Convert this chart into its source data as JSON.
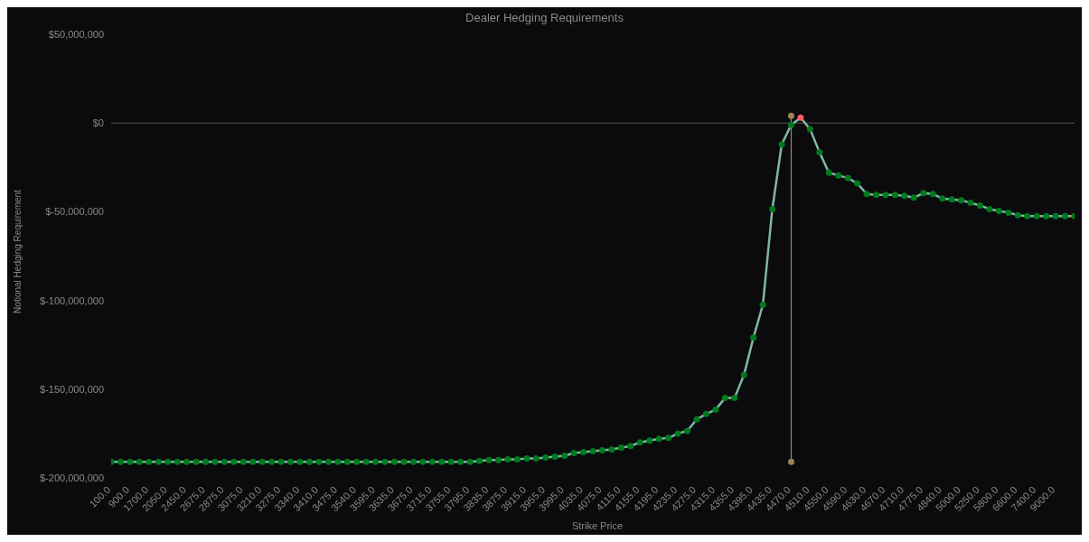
{
  "chart_data": {
    "type": "line",
    "title": "Dealer Hedging Requirements",
    "xlabel": "Strike Price",
    "ylabel": "Notional Hedging Requirement",
    "categories": [
      "100.0",
      null,
      "900.0",
      null,
      "1700.0",
      null,
      "2050.0",
      null,
      "2450.0",
      null,
      "2675.0",
      null,
      "2875.0",
      null,
      "3075.0",
      null,
      "3210.0",
      null,
      "3275.0",
      null,
      "3340.0",
      null,
      "3410.0",
      null,
      "3475.0",
      null,
      "3540.0",
      null,
      "3595.0",
      null,
      "3635.0",
      null,
      "3675.0",
      null,
      "3715.0",
      null,
      "3755.0",
      null,
      "3795.0",
      null,
      "3835.0",
      null,
      "3875.0",
      null,
      "3915.0",
      null,
      "3955.0",
      null,
      "3995.0",
      null,
      "4035.0",
      null,
      "4075.0",
      null,
      "4115.0",
      null,
      "4155.0",
      null,
      "4195.0",
      null,
      "4235.0",
      null,
      "4275.0",
      null,
      "4315.0",
      null,
      "4355.0",
      null,
      "4395.0",
      null,
      "4435.0",
      null,
      "4470.0",
      null,
      "4510.0",
      null,
      "4550.0",
      null,
      "4590.0",
      null,
      "4630.0",
      null,
      "4670.0",
      null,
      "4710.0",
      null,
      "4775.0",
      null,
      "4840.0",
      null,
      "5000.0",
      null,
      "5250.0",
      null,
      "5800.0",
      null,
      "6600.0",
      null,
      "7400.0",
      null,
      "9000.0",
      null,
      null
    ],
    "series": [
      {
        "color": "#7fb8a4",
        "marker": "circle",
        "values": [
          -191000000,
          -191000000,
          -191000000,
          -191000000,
          -191000000,
          -191000000,
          -191000000,
          -191000000,
          -191000000,
          -191000000,
          -191000000,
          -191000000,
          -191000000,
          -191000000,
          -191000000,
          -191000000,
          -191000000,
          -191000000,
          -191000000,
          -191000000,
          -191000000,
          -191000000,
          -191000000,
          -191000000,
          -191000000,
          -191000000,
          -191000000,
          -191000000,
          -191000000,
          -191000000,
          -191000000,
          -191000000,
          -191000000,
          -191000000,
          -191000000,
          -191000000,
          -191000000,
          -191000000,
          -191000000,
          -190500000,
          -190000000,
          -190000000,
          -189500000,
          -189500000,
          -189000000,
          -189000000,
          -188500000,
          -188000000,
          -187500000,
          -186000000,
          -185500000,
          -185000000,
          -184500000,
          -184000000,
          -183000000,
          -182000000,
          -180000000,
          -179000000,
          -178000000,
          -177500000,
          -175000000,
          -173500000,
          -167000000,
          -164000000,
          -161500000,
          -155000000,
          -155000000,
          -142000000,
          -121000000,
          -102500000,
          -48500000,
          -12000000,
          -1000000,
          3000000,
          -3500000,
          -16500000,
          -28000000,
          -29500000,
          -31000000,
          -34000000,
          -40000000,
          -40500000,
          -40500000,
          -40500000,
          -41000000,
          -42000000,
          -39500000,
          -40000000,
          -42500000,
          -43000000,
          -43500000,
          -45000000,
          -46500000,
          -48500000,
          -49500000,
          -50500000,
          -52000000,
          -52500000,
          -52500000,
          -52500000,
          -52500000,
          -52500000,
          -52500000
        ],
        "colors": [
          "#007a1e",
          "#007a1e",
          "#007a1e",
          "#007a1e",
          "#007a1e",
          "#007a1e",
          "#007a1e",
          "#007a1e",
          "#007a1e",
          "#007a1e",
          "#007a1e",
          "#007a1e",
          "#007a1e",
          "#007a1e",
          "#007a1e",
          "#007a1e",
          "#007a1e",
          "#007a1e",
          "#007a1e",
          "#007a1e",
          "#007a1e",
          "#007a1e",
          "#007a1e",
          "#007a1e",
          "#007a1e",
          "#007a1e",
          "#007a1e",
          "#007a1e",
          "#007a1e",
          "#007a1e",
          "#007a1e",
          "#007a1e",
          "#007a1e",
          "#007a1e",
          "#007a1e",
          "#007a1e",
          "#007a1e",
          "#007a1e",
          "#007a1e",
          "#007a1e",
          "#007a1e",
          "#007a1e",
          "#007a1e",
          "#007a1e",
          "#007a1e",
          "#007a1e",
          "#007a1e",
          "#007a1e",
          "#007a1e",
          "#007a1e",
          "#007a1e",
          "#007a1e",
          "#007a1e",
          "#007a1e",
          "#007a1e",
          "#007a1e",
          "#007a1e",
          "#007a1e",
          "#007a1e",
          "#007a1e",
          "#007a1e",
          "#007a1e",
          "#007a1e",
          "#007a1e",
          "#007a1e",
          "#007a1e",
          "#007a1e",
          "#007a1e",
          "#007a1e",
          "#007a1e",
          "#007a1e",
          "#007a1e",
          "#007a1e",
          "#ff5a64",
          "#007a1e",
          "#007a1e",
          "#007a1e",
          "#007a1e",
          "#007a1e",
          "#007a1e",
          "#007a1e",
          "#007a1e",
          "#007a1e",
          "#007a1e",
          "#007a1e",
          "#007a1e",
          "#007a1e",
          "#007a1e",
          "#007a1e",
          "#007a1e",
          "#007a1e",
          "#007a1e",
          "#007a1e",
          "#007a1e",
          "#007a1e",
          "#007a1e",
          "#007a1e",
          "#007a1e",
          "#007a1e",
          "#007a1e",
          "#007a1e",
          "#007a1e",
          "#007a1e"
        ]
      },
      {
        "color": "#9c8450",
        "marker": "circle",
        "x": [
          "4470.0",
          "4470.0"
        ],
        "values": [
          4000000,
          -191000000
        ]
      }
    ],
    "ylim": [
      -200000000,
      50000000
    ],
    "yticks": [
      {
        "value": -200000000,
        "label": "$-200,000,000"
      },
      {
        "value": -150000000,
        "label": "$-150,000,000"
      },
      {
        "value": -100000000,
        "label": "$-100,000,000"
      },
      {
        "value": -50000000,
        "label": "$-50,000,000"
      },
      {
        "value": 0,
        "label": "$0"
      },
      {
        "value": 50000000,
        "label": "$50,000,000"
      }
    ],
    "ref_lines": [
      {
        "axis": "y",
        "value": 0,
        "color": "#555555"
      }
    ],
    "grid": false
  }
}
